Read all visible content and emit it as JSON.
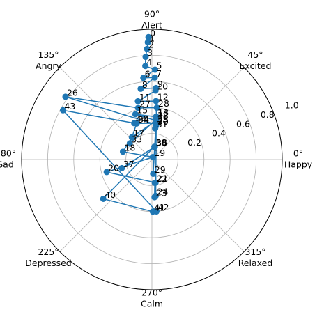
{
  "chart_data": {
    "type": "polar_line",
    "theta": [
      91.6,
      92,
      92.5,
      93.5,
      94,
      88,
      96,
      88,
      99,
      86.7,
      87,
      103.5,
      86,
      84,
      84.5,
      110,
      84,
      132,
      165,
      70,
      195.5,
      279,
      277,
      274,
      276,
      83,
      144,
      105,
      84.6,
      275,
      83,
      84,
      84,
      144,
      113,
      84,
      77,
      196,
      78,
      79,
      219,
      271,
      275,
      151,
      116
    ],
    "r": [
      0.94,
      0.9,
      0.85,
      0.79,
      0.72,
      0.69,
      0.63,
      0.63,
      0.55,
      0.55,
      0.53,
      0.46,
      0.45,
      0.33,
      0.33,
      0.37,
      0.3,
      0.23,
      0.23,
      0.02,
      0.36,
      0.18,
      0.18,
      0.29,
      0.28,
      0.27,
      0.82,
      0.41,
      0.4,
      0.11,
      0.26,
      0.24,
      0.31,
      0.21,
      0.3,
      0.28,
      0.1,
      0.24,
      0.1,
      0.1,
      0.48,
      0.4,
      0.4,
      0.78,
      0.31
    ],
    "point_labels": [
      "0",
      "1",
      "2",
      "3",
      "4",
      "5",
      "6",
      "7",
      "8",
      "9",
      "10",
      "11",
      "12",
      "13",
      "14",
      "15",
      "16",
      "17",
      "18",
      "19",
      "20",
      "21",
      "22",
      "23",
      "24",
      "25",
      "26",
      "27",
      "28",
      "29",
      "30",
      "31",
      "32",
      "33",
      "34",
      "35",
      "36",
      "37",
      "38",
      "39",
      "40",
      "41",
      "42",
      "43",
      "44"
    ],
    "color": "#1f77b4",
    "rlim": [
      0,
      1
    ],
    "rticks": [
      0.2,
      0.4,
      0.6,
      0.8,
      {
        "value": 1.0,
        "label": "1.0"
      }
    ],
    "thetaticks": [
      {
        "value": 0,
        "label": "0°",
        "sublabel": "Happy"
      },
      {
        "value": 45,
        "label": "45°",
        "sublabel": "Excited"
      },
      {
        "value": 90,
        "label": "90°",
        "sublabel": "Alert"
      },
      {
        "value": 135,
        "label": "135°",
        "sublabel": "Angry"
      },
      {
        "value": 180,
        "label": "180°",
        "sublabel": "Sad"
      },
      {
        "value": 225,
        "label": "225°",
        "sublabel": "Depressed"
      },
      {
        "value": 270,
        "label": "270°",
        "sublabel": "Calm"
      },
      {
        "value": 315,
        "label": "315°",
        "sublabel": "Relaxed"
      }
    ],
    "grid": true
  }
}
